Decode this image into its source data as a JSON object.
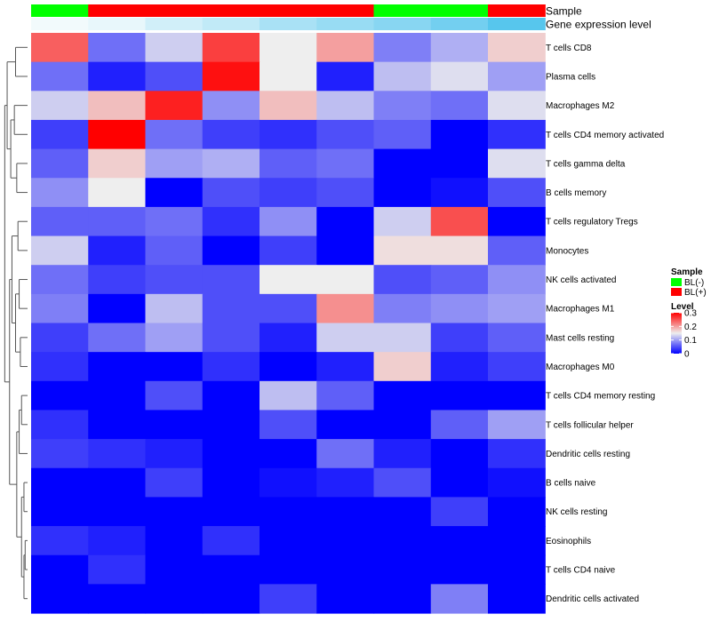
{
  "chart_data": {
    "type": "heatmap",
    "rows": [
      "T cells CD8",
      "Plasma cells",
      "Macrophages M2",
      "T cells CD4 memory activated",
      "T cells gamma delta",
      "B cells memory",
      "T cells regulatory  Tregs",
      "Monocytes",
      "NK cells activated",
      "Macrophages M1",
      "Mast cells resting",
      "Macrophages M0",
      "T cells CD4 memory resting",
      "T cells follicular helper",
      "Dendritic cells resting",
      "B cells naive",
      "NK cells resting",
      "Eosinophils",
      "T cells CD4 naive",
      "Dendritic cells activated"
    ],
    "values": [
      [
        0.24,
        0.07,
        0.13,
        0.26,
        0.15,
        0.2,
        0.08,
        0.11,
        0.17
      ],
      [
        0.07,
        0.02,
        0.05,
        0.29,
        0.15,
        0.02,
        0.12,
        0.14,
        0.1
      ],
      [
        0.13,
        0.18,
        0.28,
        0.09,
        0.18,
        0.12,
        0.08,
        0.07,
        0.14
      ],
      [
        0.04,
        0.3,
        0.07,
        0.04,
        0.03,
        0.05,
        0.06,
        0.0,
        0.03
      ],
      [
        0.06,
        0.17,
        0.1,
        0.11,
        0.06,
        0.07,
        0.0,
        0.0,
        0.14
      ],
      [
        0.09,
        0.15,
        0.0,
        0.05,
        0.04,
        0.05,
        0.0,
        0.01,
        0.05
      ],
      [
        0.06,
        0.06,
        0.07,
        0.03,
        0.09,
        0.0,
        0.13,
        0.25,
        0.0
      ],
      [
        0.13,
        0.02,
        0.06,
        0.0,
        0.04,
        0.0,
        0.16,
        0.16,
        0.06
      ],
      [
        0.07,
        0.04,
        0.05,
        0.05,
        0.15,
        0.15,
        0.05,
        0.06,
        0.09
      ],
      [
        0.08,
        0.0,
        0.12,
        0.05,
        0.05,
        0.21,
        0.08,
        0.09,
        0.1
      ],
      [
        0.04,
        0.07,
        0.1,
        0.05,
        0.02,
        0.13,
        0.13,
        0.04,
        0.06
      ],
      [
        0.03,
        0.0,
        0.0,
        0.03,
        0.0,
        0.02,
        0.17,
        0.02,
        0.04
      ],
      [
        0.0,
        0.0,
        0.05,
        0.0,
        0.12,
        0.06,
        0.0,
        0.0,
        0.0
      ],
      [
        0.03,
        0.0,
        0.0,
        0.0,
        0.05,
        0.0,
        0.0,
        0.06,
        0.1
      ],
      [
        0.04,
        0.03,
        0.02,
        0.0,
        0.0,
        0.07,
        0.02,
        0.0,
        0.03
      ],
      [
        0.0,
        0.0,
        0.04,
        0.0,
        0.01,
        0.02,
        0.05,
        0.0,
        0.01
      ],
      [
        0.0,
        0.0,
        0.0,
        0.0,
        0.0,
        0.0,
        0.0,
        0.04,
        0.0
      ],
      [
        0.03,
        0.02,
        0.0,
        0.03,
        0.0,
        0.0,
        0.0,
        0.0,
        0.0
      ],
      [
        0.0,
        0.03,
        0.0,
        0.0,
        0.0,
        0.0,
        0.0,
        0.0,
        0.0
      ],
      [
        0.0,
        0.0,
        0.0,
        0.0,
        0.04,
        0.0,
        0.0,
        0.08,
        0.0
      ]
    ],
    "column_annotations": [
      {
        "label": "Sample",
        "values": [
          "BL(-)",
          "BL(+)",
          "BL(+)",
          "BL(+)",
          "BL(+)",
          "BL(+)",
          "BL(-)",
          "BL(-)",
          "BL(+)"
        ]
      },
      {
        "label": "Gene expression level",
        "values": [
          0,
          0.06,
          0.2,
          0.3,
          0.45,
          0.55,
          0.65,
          0.78,
          0.95
        ]
      }
    ],
    "legend": {
      "sample": {
        "title": "Sample",
        "entries": [
          {
            "label": "BL(-)",
            "color": "#00ff00"
          },
          {
            "label": "BL(+)",
            "color": "#ff0000"
          }
        ]
      },
      "level": {
        "title": "Level",
        "ticks": [
          0.3,
          0.2,
          0.1,
          0
        ],
        "range": [
          0,
          0.3
        ]
      },
      "position": "right"
    },
    "colors": {
      "low": "#0000ff",
      "mid": "#eeeeee",
      "high": "#ff0000",
      "expression_light": "#f2fafc",
      "expression_dark": "#4fc3ec"
    }
  }
}
